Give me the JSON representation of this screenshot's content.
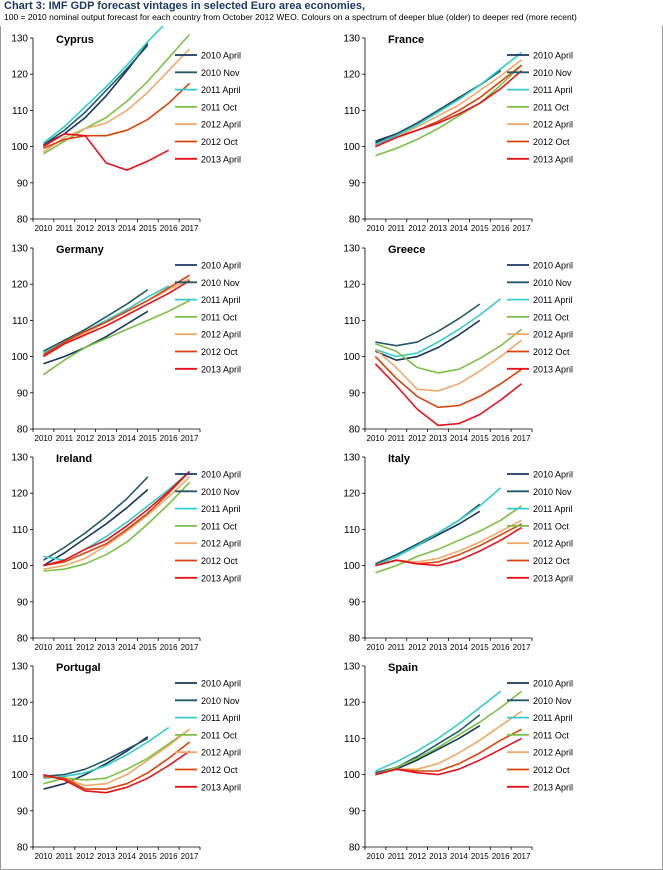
{
  "page": {
    "title": "Chart 3: IMF GDP forecast vintages in selected Euro area economies,",
    "subtitle": "100 = 2010 nominal output forecast for each country from October 2012 WEO.  Colours on a spectrum of deeper blue (older) to deeper red (more recent)"
  },
  "vintages": [
    {
      "name": "2010 April",
      "color": "#17365d"
    },
    {
      "name": "2010 Nov",
      "color": "#215968"
    },
    {
      "name": "2011 April",
      "color": "#33cccc"
    },
    {
      "name": "2011 Oct",
      "color": "#7ac143"
    },
    {
      "name": "2012 April",
      "color": "#f0a868"
    },
    {
      "name": "2012 Oct",
      "color": "#d9420b"
    },
    {
      "name": "2013 April",
      "color": "#e8101a"
    }
  ],
  "chart_data": [
    {
      "type": "line",
      "title": "Cyprus",
      "x": [
        2010,
        2011,
        2012,
        2013,
        2014,
        2015,
        2016,
        2017
      ],
      "ylim": [
        80,
        130
      ],
      "yticks": [
        80,
        90,
        100,
        110,
        120,
        130
      ],
      "legend_position": "right",
      "series": [
        {
          "name": "2010 April",
          "values": [
            100.5,
            103.5,
            108,
            114,
            121,
            128.5,
            null,
            null
          ]
        },
        {
          "name": "2010 Nov",
          "values": [
            100.5,
            104.5,
            109.5,
            115.5,
            121.5,
            128,
            null,
            null
          ]
        },
        {
          "name": "2011 April",
          "values": [
            101,
            105.5,
            111,
            116.5,
            122.5,
            129,
            135,
            null
          ]
        },
        {
          "name": "2011 Oct",
          "values": [
            98,
            101.5,
            105,
            108,
            112.5,
            118,
            124.5,
            131
          ]
        },
        {
          "name": "2012 April",
          "values": [
            98.5,
            102.5,
            105,
            106.5,
            110,
            115,
            121,
            127
          ]
        },
        {
          "name": "2012 Oct",
          "values": [
            99.5,
            102,
            103,
            103,
            104.5,
            107.5,
            112,
            117.5
          ]
        },
        {
          "name": "2013 April",
          "values": [
            100,
            103.5,
            103,
            95.5,
            93.5,
            96,
            99,
            null
          ]
        }
      ]
    },
    {
      "type": "line",
      "title": "France",
      "x": [
        2010,
        2011,
        2012,
        2013,
        2014,
        2015,
        2016,
        2017
      ],
      "ylim": [
        80,
        130
      ],
      "yticks": [
        80,
        90,
        100,
        110,
        120,
        130
      ],
      "legend_position": "right",
      "series": [
        {
          "name": "2010 April",
          "values": [
            101.5,
            103.5,
            106.5,
            110,
            113.5,
            117,
            121,
            null
          ]
        },
        {
          "name": "2010 Nov",
          "values": [
            101,
            103.5,
            106.5,
            110,
            113.5,
            117,
            121,
            null
          ]
        },
        {
          "name": "2011 April",
          "values": [
            100.5,
            103,
            106,
            109.5,
            113,
            117,
            121.5,
            126
          ]
        },
        {
          "name": "2011 Oct",
          "values": [
            97.5,
            99.5,
            102,
            105,
            108.5,
            112,
            117,
            122.5
          ]
        },
        {
          "name": "2012 April",
          "values": [
            100,
            102.5,
            105.5,
            108.5,
            111.5,
            115.5,
            119.5,
            124
          ]
        },
        {
          "name": "2012 Oct",
          "values": [
            100,
            102.5,
            104.5,
            107,
            110,
            113.5,
            118,
            122.5
          ]
        },
        {
          "name": "2013 April",
          "values": [
            100,
            102.5,
            104.5,
            106.5,
            109,
            112,
            116,
            121
          ]
        }
      ]
    },
    {
      "type": "line",
      "title": "Germany",
      "x": [
        2010,
        2011,
        2012,
        2013,
        2014,
        2015,
        2016,
        2017
      ],
      "ylim": [
        80,
        130
      ],
      "yticks": [
        80,
        90,
        100,
        110,
        120,
        130
      ],
      "legend_position": "right",
      "series": [
        {
          "name": "2010 April",
          "values": [
            98,
            100,
            102.5,
            105.5,
            109,
            112.5,
            null,
            null
          ]
        },
        {
          "name": "2010 Nov",
          "values": [
            101.5,
            104.5,
            107.5,
            111,
            114.5,
            118.5,
            null,
            null
          ]
        },
        {
          "name": "2011 April",
          "values": [
            101,
            104,
            107,
            110,
            113,
            116.5,
            119.5,
            null
          ]
        },
        {
          "name": "2011 Oct",
          "values": [
            95,
            99,
            102.5,
            105,
            107.5,
            110,
            112.5,
            115.5
          ]
        },
        {
          "name": "2012 April",
          "values": [
            100,
            103.5,
            106.5,
            109.5,
            112.5,
            115.5,
            118.5,
            121.5
          ]
        },
        {
          "name": "2012 Oct",
          "values": [
            100.5,
            104,
            107,
            109.5,
            112.5,
            115.5,
            119,
            122.5
          ]
        },
        {
          "name": "2013 April",
          "values": [
            100,
            103.5,
            106,
            108.5,
            111.5,
            114.5,
            117.5,
            121
          ]
        }
      ]
    },
    {
      "type": "line",
      "title": "Greece",
      "x": [
        2010,
        2011,
        2012,
        2013,
        2014,
        2015,
        2016,
        2017
      ],
      "ylim": [
        80,
        130
      ],
      "yticks": [
        80,
        90,
        100,
        110,
        120,
        130
      ],
      "legend_position": "right",
      "series": [
        {
          "name": "2010 April",
          "values": [
            101.5,
            99,
            100,
            102.5,
            106,
            110,
            null,
            null
          ]
        },
        {
          "name": "2010 Nov",
          "values": [
            104,
            103,
            104,
            107,
            110.5,
            114.5,
            null,
            null
          ]
        },
        {
          "name": "2011 April",
          "values": [
            102,
            100,
            101,
            104,
            107.5,
            111.5,
            116,
            null
          ]
        },
        {
          "name": "2011 Oct",
          "values": [
            103.5,
            101.5,
            97,
            95.5,
            96.5,
            99.5,
            103,
            107.5
          ]
        },
        {
          "name": "2012 April",
          "values": [
            102,
            97,
            91,
            90.5,
            92.5,
            96,
            100,
            104.5
          ]
        },
        {
          "name": "2012 Oct",
          "values": [
            100,
            94,
            89,
            86,
            86.5,
            89,
            92.5,
            96.5
          ]
        },
        {
          "name": "2013 April",
          "values": [
            98,
            92,
            85.5,
            81,
            81.5,
            84,
            88,
            92.5
          ]
        }
      ]
    },
    {
      "type": "line",
      "title": "Ireland",
      "x": [
        2010,
        2011,
        2012,
        2013,
        2014,
        2015,
        2016,
        2017
      ],
      "ylim": [
        80,
        130
      ],
      "yticks": [
        80,
        90,
        100,
        110,
        120,
        130
      ],
      "legend_position": "right",
      "series": [
        {
          "name": "2010 April",
          "values": [
            100,
            103.5,
            107.5,
            111.5,
            116,
            121,
            null,
            null
          ]
        },
        {
          "name": "2010 Nov",
          "values": [
            101.5,
            105,
            109,
            113.5,
            118.5,
            124.5,
            null,
            null
          ]
        },
        {
          "name": "2011 April",
          "values": [
            102.5,
            101.5,
            104.5,
            108,
            112,
            116.5,
            121,
            126
          ]
        },
        {
          "name": "2011 Oct",
          "values": [
            98.5,
            99,
            100.5,
            103,
            106.5,
            111.5,
            117,
            123
          ]
        },
        {
          "name": "2012 April",
          "values": [
            99,
            100,
            102,
            105.5,
            109.5,
            114,
            119,
            124.5
          ]
        },
        {
          "name": "2012 Oct",
          "values": [
            100,
            101,
            103.5,
            106,
            110,
            114.5,
            120,
            126
          ]
        },
        {
          "name": "2013 April",
          "values": [
            100,
            101.5,
            104.5,
            107,
            111,
            115.5,
            120.5,
            126
          ]
        }
      ]
    },
    {
      "type": "line",
      "title": "Italy",
      "x": [
        2010,
        2011,
        2012,
        2013,
        2014,
        2015,
        2016,
        2017
      ],
      "ylim": [
        80,
        130
      ],
      "yticks": [
        80,
        90,
        100,
        110,
        120,
        130
      ],
      "legend_position": "right",
      "series": [
        {
          "name": "2010 April",
          "values": [
            100,
            102.5,
            105.5,
            108.5,
            111.5,
            115,
            null,
            null
          ]
        },
        {
          "name": "2010 Nov",
          "values": [
            100.5,
            103,
            106,
            109,
            112.5,
            117,
            null,
            null
          ]
        },
        {
          "name": "2011 April",
          "values": [
            100,
            102.5,
            105.5,
            109,
            112.5,
            116.5,
            121.5,
            null
          ]
        },
        {
          "name": "2011 Oct",
          "values": [
            98,
            100,
            102.5,
            104.5,
            107,
            109.5,
            112.5,
            116.5
          ]
        },
        {
          "name": "2012 April",
          "values": [
            100,
            101.5,
            101,
            102,
            104,
            106.5,
            109.5,
            112.5
          ]
        },
        {
          "name": "2012 Oct",
          "values": [
            100,
            101.5,
            100.5,
            101,
            103,
            105.5,
            108.5,
            111.5
          ]
        },
        {
          "name": "2013 April",
          "values": [
            100,
            101.5,
            100.5,
            100,
            101.5,
            104,
            107,
            110.5
          ]
        }
      ]
    },
    {
      "type": "line",
      "title": "Portugal",
      "x": [
        2010,
        2011,
        2012,
        2013,
        2014,
        2015,
        2016,
        2017
      ],
      "ylim": [
        80,
        130
      ],
      "yticks": [
        80,
        90,
        100,
        110,
        120,
        130
      ],
      "legend_position": "right",
      "series": [
        {
          "name": "2010 April",
          "values": [
            96,
            97.5,
            100,
            103,
            106.5,
            110.5,
            null,
            null
          ]
        },
        {
          "name": "2010 Nov",
          "values": [
            99.5,
            100,
            101.5,
            104,
            107,
            110,
            null,
            null
          ]
        },
        {
          "name": "2011 April",
          "values": [
            99,
            99.5,
            100.5,
            102.5,
            105.5,
            109,
            113,
            null
          ]
        },
        {
          "name": "2011 Oct",
          "values": [
            97.5,
            99,
            98.5,
            99,
            101.5,
            104.5,
            108.5,
            112.5
          ]
        },
        {
          "name": "2012 April",
          "values": [
            99.5,
            99,
            97,
            97.5,
            100,
            104,
            108,
            112.5
          ]
        },
        {
          "name": "2012 Oct",
          "values": [
            99.5,
            99,
            96,
            96,
            97.5,
            100.5,
            104.5,
            109
          ]
        },
        {
          "name": "2013 April",
          "values": [
            100,
            98.5,
            95.5,
            95,
            96.5,
            99,
            102.5,
            106.5
          ]
        }
      ]
    },
    {
      "type": "line",
      "title": "Spain",
      "x": [
        2010,
        2011,
        2012,
        2013,
        2014,
        2015,
        2016,
        2017
      ],
      "ylim": [
        80,
        130
      ],
      "yticks": [
        80,
        90,
        100,
        110,
        120,
        130
      ],
      "legend_position": "right",
      "series": [
        {
          "name": "2010 April",
          "values": [
            100,
            101.5,
            104,
            107,
            110,
            113.5,
            null,
            null
          ]
        },
        {
          "name": "2010 Nov",
          "values": [
            100.5,
            102,
            105,
            108.5,
            112,
            116.5,
            null,
            null
          ]
        },
        {
          "name": "2011 April",
          "values": [
            101,
            103.5,
            106.5,
            110,
            114,
            118.5,
            123,
            null
          ]
        },
        {
          "name": "2011 Oct",
          "values": [
            100,
            102,
            104.5,
            107.5,
            111,
            114.5,
            118.5,
            123
          ]
        },
        {
          "name": "2012 April",
          "values": [
            100,
            101.5,
            101.5,
            103,
            106,
            109.5,
            113.5,
            117.5
          ]
        },
        {
          "name": "2012 Oct",
          "values": [
            100,
            101.5,
            101,
            101,
            103,
            106,
            109.5,
            112.5
          ]
        },
        {
          "name": "2013 April",
          "values": [
            100,
            101.5,
            100.5,
            100,
            101.5,
            104,
            107,
            110
          ]
        }
      ]
    }
  ]
}
